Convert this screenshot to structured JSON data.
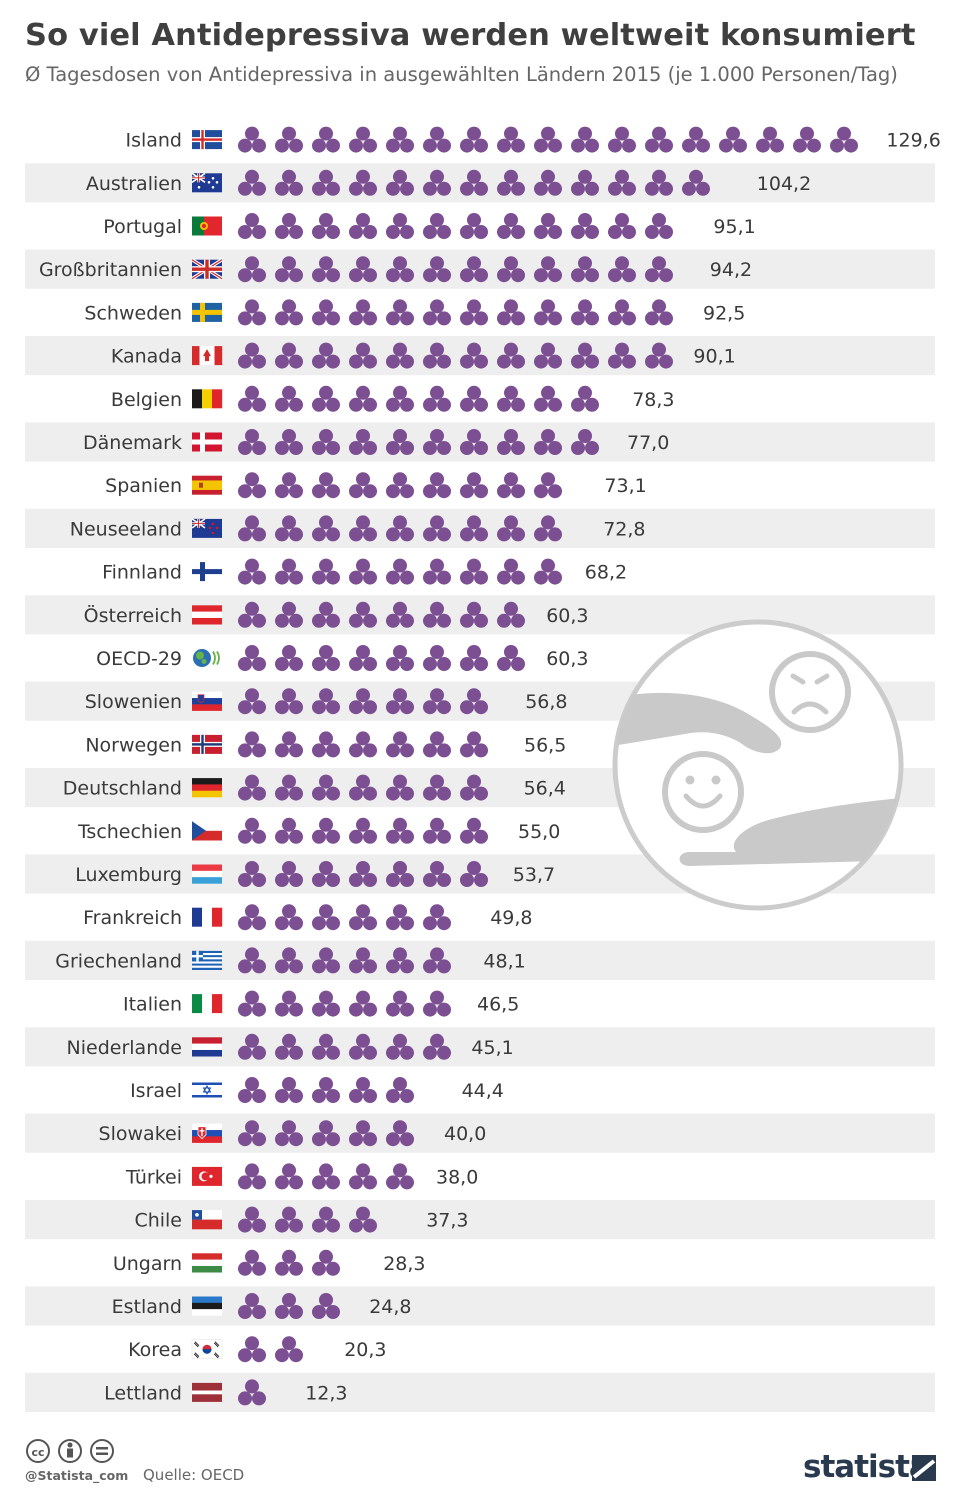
{
  "header": {
    "title": "So viel Antidepressiva werden weltweit konsumiert",
    "subtitle": "Ø Tagesdosen von Antidepressiva in ausgewählten Ländern 2015 (je 1.000 Personen/Tag)"
  },
  "footer": {
    "handle": "@Statista_com",
    "source": "Quelle: OECD",
    "brand": "statista"
  },
  "icons": {
    "pill_icon": "pill-cluster-icon",
    "illustration": "sad-happy-hands-icon"
  },
  "colors": {
    "pill": "#7b4f91",
    "stripe": "#eeeeee",
    "text": "#3a3a3a",
    "illustration": "#cccccc"
  },
  "chart_data": {
    "type": "pictogram-bar",
    "unit_per_icon": 7.5,
    "categories": [
      "Island",
      "Australien",
      "Portugal",
      "Großbritannien",
      "Schweden",
      "Kanada",
      "Belgien",
      "Dänemark",
      "Spanien",
      "Neuseeland",
      "Finnland",
      "Österreich",
      "OECD-29",
      "Slowenien",
      "Norwegen",
      "Deutschland",
      "Tschechien",
      "Luxemburg",
      "Frankreich",
      "Griechenland",
      "Italien",
      "Niederlande",
      "Israel",
      "Slowakei",
      "Türkei",
      "Chile",
      "Ungarn",
      "Estland",
      "Korea",
      "Lettland"
    ],
    "flags": [
      "iceland",
      "australia",
      "portugal",
      "united-kingdom",
      "sweden",
      "canada",
      "belgium",
      "denmark",
      "spain",
      "new-zealand",
      "finland",
      "austria",
      "oecd",
      "slovenia",
      "norway",
      "germany",
      "czechia",
      "luxembourg",
      "france",
      "greece",
      "italy",
      "netherlands",
      "israel",
      "slovakia",
      "turkey",
      "chile",
      "hungary",
      "estonia",
      "korea",
      "latvia"
    ],
    "values": [
      129.6,
      104.2,
      95.1,
      94.2,
      92.5,
      90.1,
      78.3,
      77.0,
      73.1,
      72.8,
      68.2,
      60.3,
      60.3,
      56.8,
      56.5,
      56.4,
      55.0,
      53.7,
      49.8,
      48.1,
      46.5,
      45.1,
      44.4,
      40.0,
      38.0,
      37.3,
      28.3,
      24.8,
      20.3,
      12.3
    ],
    "value_labels": [
      "129,6",
      "104,2",
      "95,1",
      "94,2",
      "92,5",
      "90,1",
      "78,3",
      "77,0",
      "73,1",
      "72,8",
      "68,2",
      "60,3",
      "60,3",
      "56,8",
      "56,5",
      "56,4",
      "55,0",
      "53,7",
      "49,8",
      "48,1",
      "46,5",
      "45,1",
      "44,4",
      "40,0",
      "38,0",
      "37,3",
      "28,3",
      "24,8",
      "20,3",
      "12,3"
    ]
  }
}
